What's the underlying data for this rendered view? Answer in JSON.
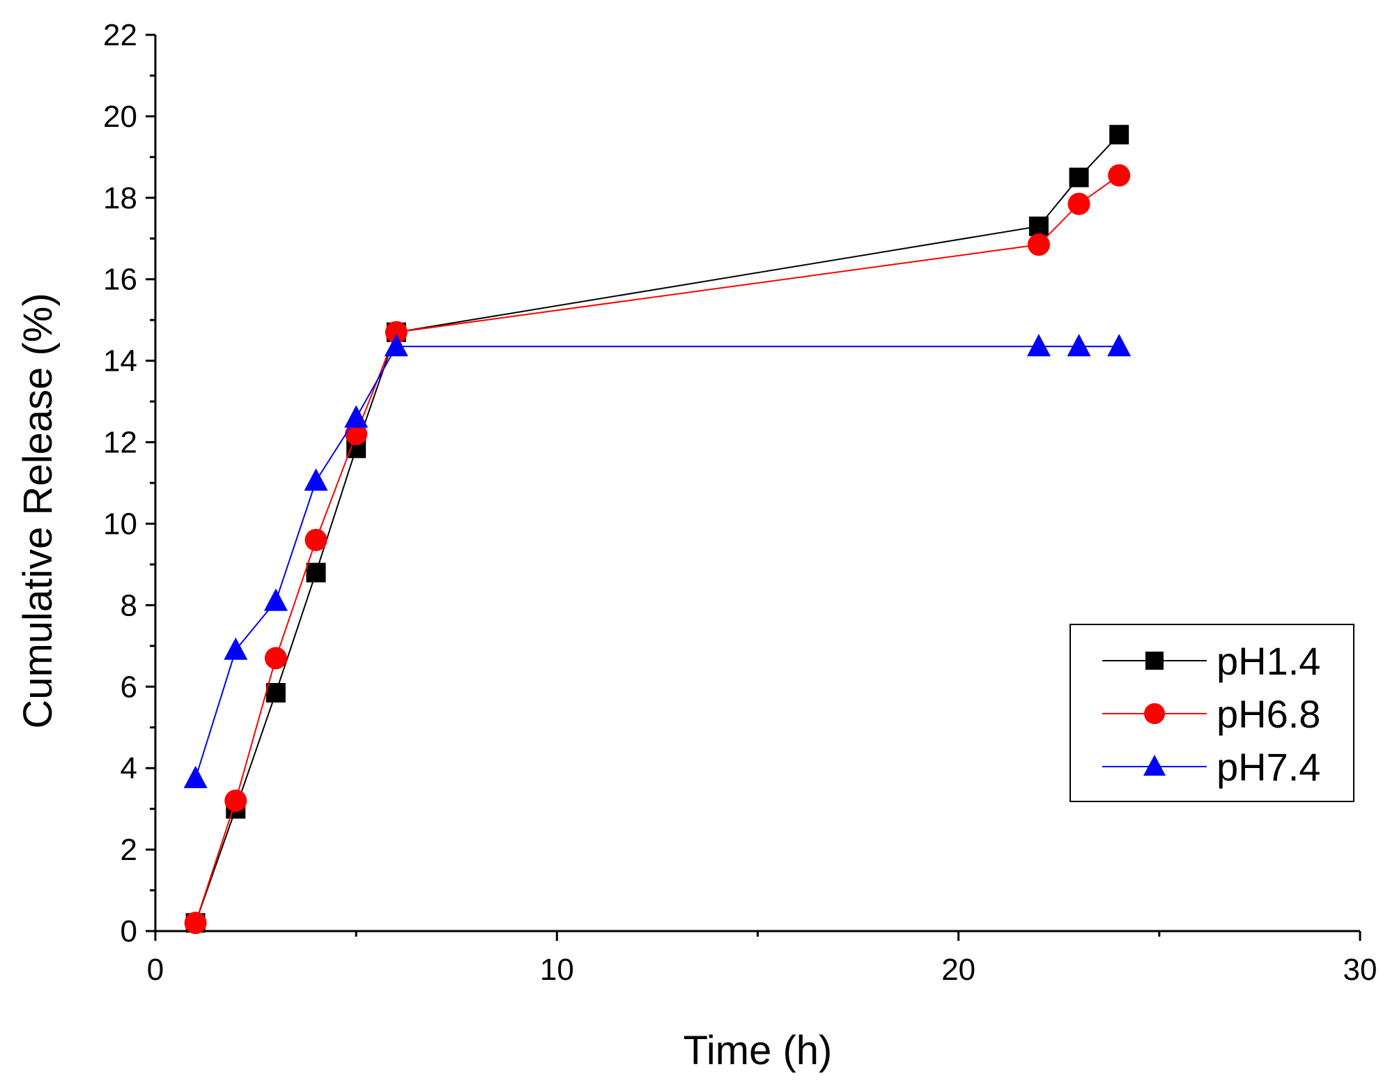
{
  "chart_data": {
    "type": "line",
    "title": "",
    "xlabel": "Time (h)",
    "ylabel": "Cumulative Release (%)",
    "xlim": [
      0,
      30
    ],
    "ylim": [
      0,
      22
    ],
    "xticks": [
      0,
      10,
      20,
      30
    ],
    "yticks": [
      0,
      2,
      4,
      6,
      8,
      10,
      12,
      14,
      16,
      18,
      20,
      22
    ],
    "grid": false,
    "legend_position": "bottom-right",
    "x": [
      1,
      2,
      3,
      4,
      5,
      6,
      22,
      23,
      24
    ],
    "series": [
      {
        "name": "pH1.4",
        "marker": "square",
        "color": "#000000",
        "values": [
          0.2,
          3.0,
          5.85,
          8.8,
          11.85,
          14.7,
          17.3,
          18.5,
          19.55
        ]
      },
      {
        "name": "pH6.8",
        "marker": "circle",
        "color": "#ff0000",
        "values": [
          0.2,
          3.2,
          6.7,
          9.6,
          12.2,
          14.7,
          16.85,
          17.85,
          18.55
        ]
      },
      {
        "name": "pH7.4",
        "marker": "triangle",
        "color": "#0000ff",
        "values": [
          3.75,
          6.9,
          8.1,
          11.05,
          12.6,
          14.35,
          14.35,
          14.35,
          14.35
        ]
      }
    ]
  }
}
